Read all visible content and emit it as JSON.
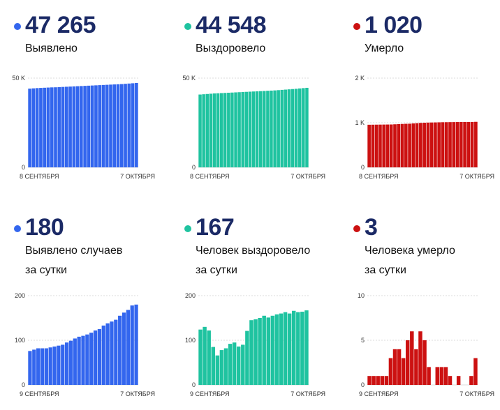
{
  "panels": [
    {
      "number": "47 265",
      "label": [
        "Выявлено"
      ],
      "color": "#3366ee",
      "chart_data": {
        "type": "bar",
        "ylim": [
          0,
          50000
        ],
        "yticks": [
          "0",
          "50 K"
        ],
        "xlabels": [
          "8 СЕНТЯБРЯ",
          "7 ОКТЯБРЯ"
        ],
        "values": [
          44100,
          44250,
          44400,
          44500,
          44600,
          44700,
          44800,
          44850,
          44950,
          45050,
          45150,
          45250,
          45350,
          45450,
          45550,
          45650,
          45750,
          45850,
          45950,
          46050,
          46150,
          46250,
          46350,
          46450,
          46550,
          46650,
          46800,
          46950,
          47100,
          47265
        ]
      }
    },
    {
      "number": "44 548",
      "label": [
        "Выздоровело"
      ],
      "color": "#1fc3a0",
      "chart_data": {
        "type": "bar",
        "ylim": [
          0,
          50000
        ],
        "yticks": [
          "0",
          "50 K"
        ],
        "xlabels": [
          "8 СЕНТЯБРЯ",
          "7 ОКТЯБРЯ"
        ],
        "values": [
          40800,
          40950,
          41100,
          41250,
          41400,
          41500,
          41600,
          41700,
          41800,
          41900,
          42000,
          42100,
          42200,
          42300,
          42400,
          42500,
          42600,
          42700,
          42800,
          42900,
          43000,
          43100,
          43250,
          43400,
          43550,
          43700,
          43850,
          44000,
          44200,
          44380,
          44548
        ]
      }
    },
    {
      "number": "1 020",
      "label": [
        "Умерло"
      ],
      "color": "#cc1111",
      "chart_data": {
        "type": "bar",
        "ylim": [
          0,
          2000
        ],
        "yticks": [
          "0",
          "1 K",
          "2 K"
        ],
        "xlabels": [
          "8 СЕНТЯБРЯ",
          "7 ОКТЯБРЯ"
        ],
        "values": [
          955,
          956,
          957,
          958,
          959,
          960,
          961,
          965,
          969,
          973,
          976,
          978,
          984,
          990,
          996,
          1000,
          1003,
          1005,
          1007,
          1009,
          1011,
          1012,
          1013,
          1014,
          1015,
          1016,
          1017,
          1017,
          1017,
          1020
        ]
      }
    },
    {
      "number": "180",
      "label": [
        "Выявлено случаев",
        "за сутки"
      ],
      "color": "#3366ee",
      "chart_data": {
        "type": "bar",
        "ylim": [
          0,
          200
        ],
        "yticks": [
          "0",
          "100",
          "200"
        ],
        "xlabels": [
          "9 СЕНТЯБРЯ",
          "7 ОКТЯБРЯ"
        ],
        "values": [
          76,
          79,
          82,
          82,
          82,
          84,
          86,
          88,
          90,
          95,
          99,
          104,
          108,
          110,
          113,
          117,
          122,
          125,
          133,
          138,
          142,
          146,
          155,
          162,
          168,
          178,
          180
        ]
      }
    },
    {
      "number": "167",
      "label": [
        "Человек выздоровело",
        "за сутки"
      ],
      "color": "#1fc3a0",
      "chart_data": {
        "type": "bar",
        "ylim": [
          0,
          200
        ],
        "yticks": [
          "0",
          "100",
          "200"
        ],
        "xlabels": [
          "9 СЕНТЯБРЯ",
          "7 ОКТЯБРЯ"
        ],
        "values": [
          124,
          130,
          122,
          85,
          66,
          78,
          82,
          92,
          95,
          86,
          90,
          121,
          145,
          147,
          150,
          155,
          151,
          155,
          158,
          160,
          163,
          160,
          166,
          163,
          164,
          167
        ]
      }
    },
    {
      "number": "3",
      "label": [
        "Человека умерло",
        "за сутки"
      ],
      "color": "#cc1111",
      "chart_data": {
        "type": "bar",
        "ylim": [
          0,
          10
        ],
        "yticks": [
          "0",
          "5",
          "10"
        ],
        "xlabels": [
          "9 СЕНТЯБРЯ",
          "7 ОКТЯБРЯ"
        ],
        "values": [
          1,
          1,
          1,
          1,
          1,
          3,
          4,
          4,
          3,
          5,
          6,
          4,
          6,
          5,
          2,
          0,
          2,
          2,
          2,
          1,
          0,
          1,
          0,
          0,
          1,
          3
        ]
      }
    }
  ]
}
